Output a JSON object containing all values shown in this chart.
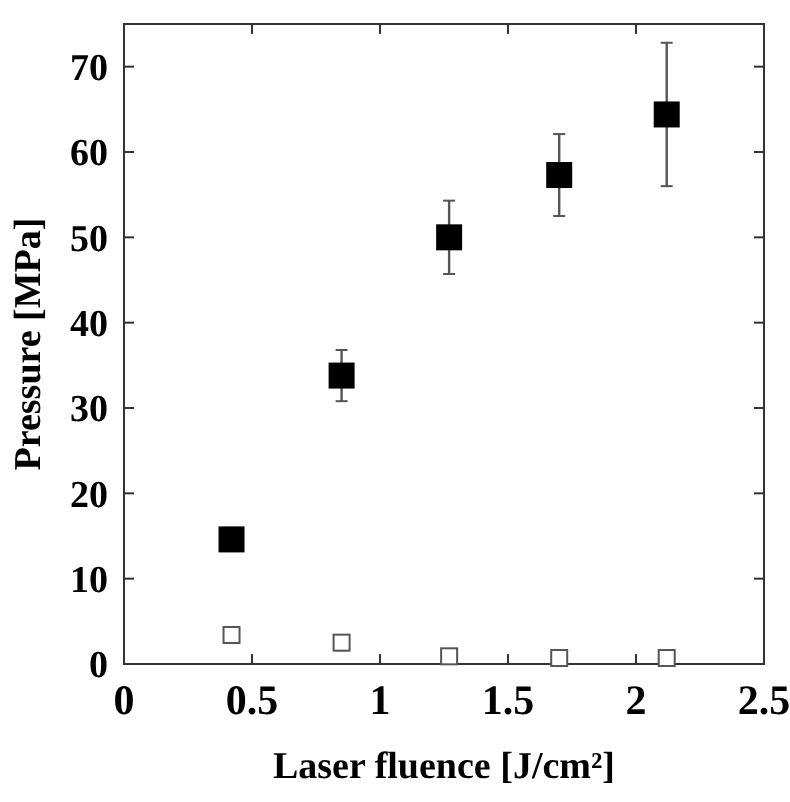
{
  "chart_data": {
    "type": "scatter",
    "xlabel": "Laser fluence [J/cm²]",
    "ylabel": "Pressure [MPa]",
    "xlim": [
      0,
      2.5
    ],
    "xticks": [
      0,
      0.5,
      1,
      1.5,
      2,
      2.5
    ],
    "ylim": [
      0,
      75
    ],
    "yticks": [
      0,
      10,
      20,
      30,
      40,
      50,
      60,
      70
    ],
    "grid": false,
    "marker": "square",
    "series": [
      {
        "color": "#000000",
        "x": [
          0.42,
          0.85,
          1.27,
          1.7,
          2.12
        ],
        "values": [
          14.6,
          33.8,
          50.0,
          57.3,
          64.4
        ],
        "errors": [
          1,
          3,
          4.3,
          4.8,
          8.4
        ]
      },
      {
        "color": "#ffffff",
        "x": [
          0.42,
          0.85,
          1.27,
          1.7,
          2.12
        ],
        "values": [
          3.4,
          2.5,
          0.9,
          0.7,
          0.7
        ],
        "errors": [
          0.6,
          0.9,
          0.4,
          0.3,
          0.3
        ]
      }
    ]
  }
}
